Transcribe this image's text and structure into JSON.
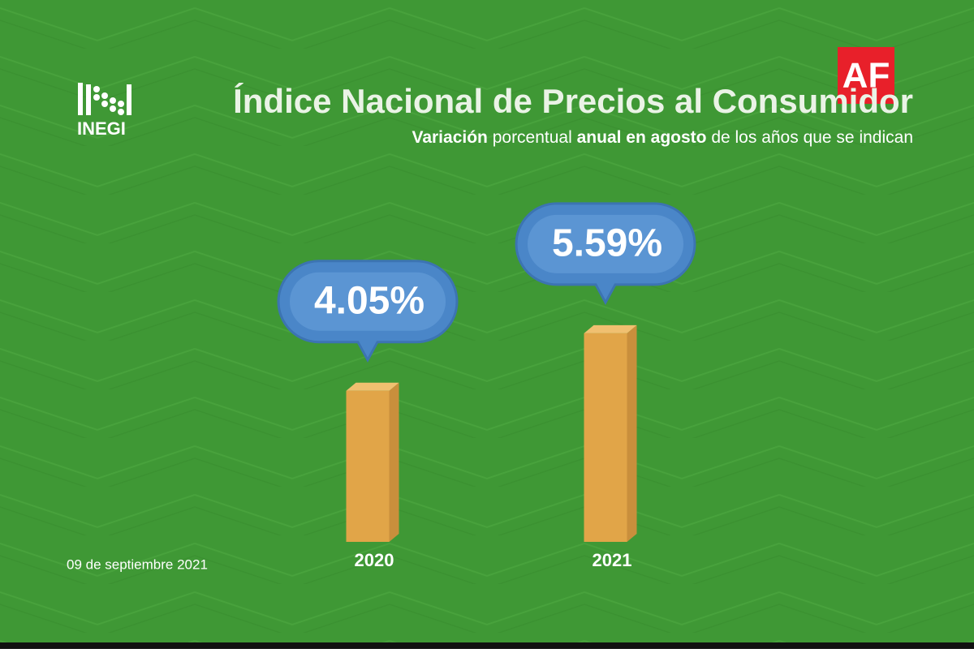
{
  "chart_data": {
    "type": "bar",
    "title": "Índice Nacional de Precios al Consumidor",
    "subtitle": [
      "Variación",
      " porcentual ",
      "anual en agosto",
      " de los años que se indican"
    ],
    "categories": [
      "2020",
      "2021"
    ],
    "values": [
      4.05,
      5.59
    ],
    "value_labels": [
      "4.05%",
      "5.59%"
    ],
    "color": "#e1a548",
    "label_color": "#4a86c8",
    "date": "09 de septiembre 2021",
    "logo": "INEGI",
    "brand": "AF"
  }
}
